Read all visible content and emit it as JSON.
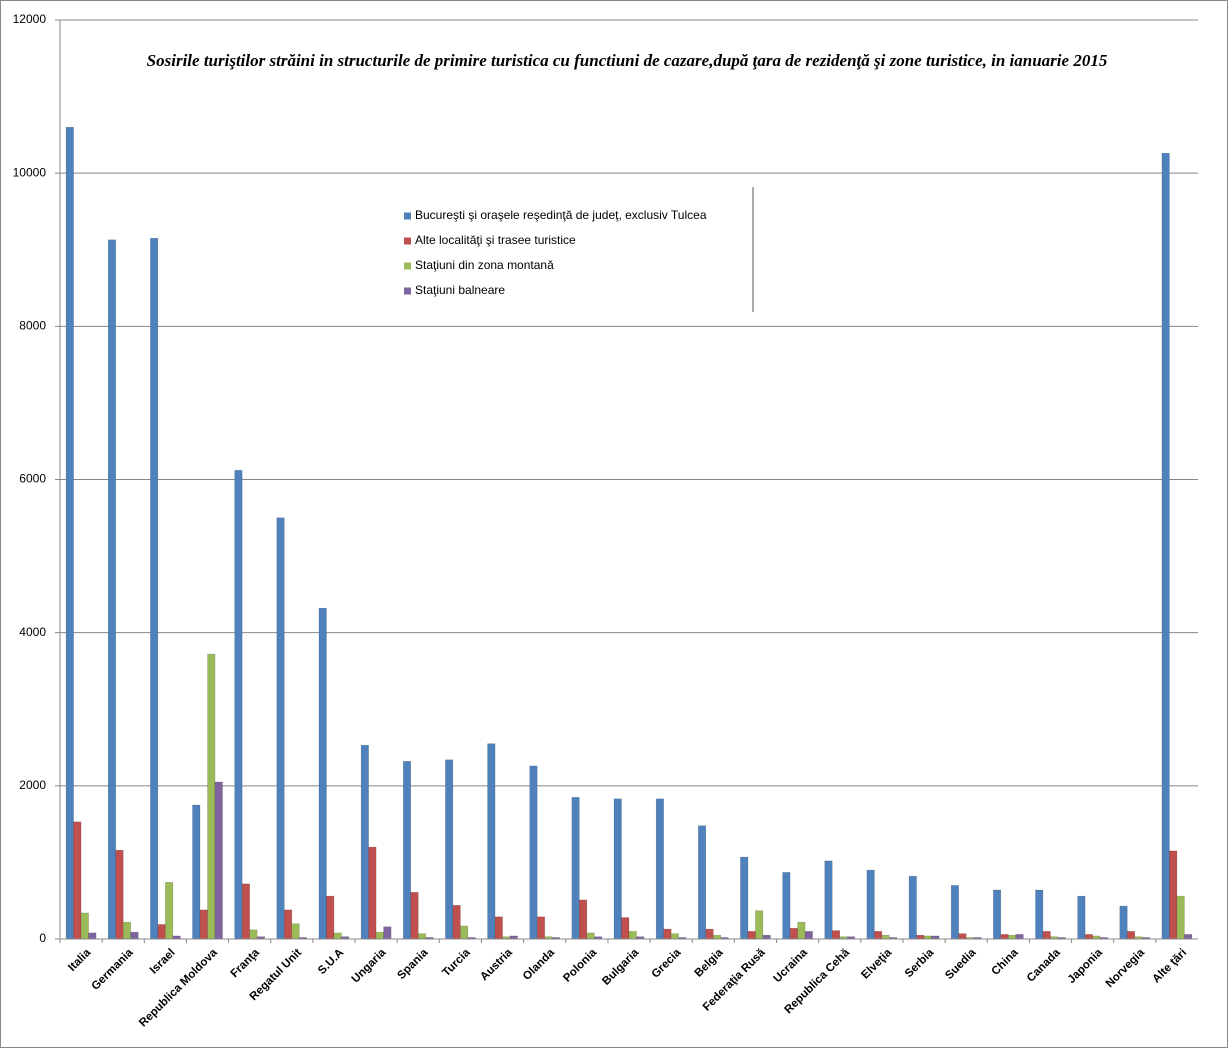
{
  "chart_data": {
    "type": "bar",
    "title": "Sosirile turiştilor străini in structurile de primire turistica cu functiuni de cazare,după ţara de rezidenţă şi zone turistice, in ianuarie 2015",
    "categories": [
      "Italia",
      "Germania",
      "Israel",
      "Republica Moldova",
      "Franţa",
      "Regatul Unit",
      "S.U.A",
      "Ungaria",
      "Spania",
      "Turcia",
      "Austria",
      "Olanda",
      "Polonia",
      "Bulgaria",
      "Grecia",
      "Belgia",
      "Federaţia Rusă",
      "Ucraina",
      "Republica Cehă",
      "Elveţia",
      "Serbia",
      "Suedia",
      "China",
      "Canada",
      "Japonia",
      "Norvegia",
      "Alte ţări"
    ],
    "series": [
      {
        "name": "Bucureşti şi oraşele reşedinţă de judeţ, exclusiv Tulcea",
        "color": "#4f81bd",
        "values": [
          10600,
          9130,
          9150,
          1750,
          6120,
          5500,
          4320,
          2530,
          2320,
          2340,
          2550,
          2260,
          1850,
          1830,
          1830,
          1480,
          1070,
          870,
          1020,
          900,
          820,
          700,
          640,
          640,
          560,
          430,
          10260
        ]
      },
      {
        "name": "Alte localităţi şi trasee turistice",
        "color": "#c0504d",
        "values": [
          1530,
          1160,
          190,
          380,
          720,
          380,
          560,
          1200,
          610,
          440,
          290,
          290,
          510,
          280,
          130,
          130,
          100,
          140,
          110,
          100,
          50,
          70,
          60,
          100,
          60,
          100,
          1150
        ]
      },
      {
        "name": "Staţiuni din zona montană",
        "color": "#9bbb59",
        "values": [
          340,
          220,
          740,
          3720,
          120,
          200,
          80,
          90,
          70,
          170,
          30,
          30,
          80,
          100,
          70,
          50,
          370,
          220,
          30,
          50,
          40,
          20,
          50,
          30,
          40,
          30,
          560
        ]
      },
      {
        "name": "Staţiuni balneare",
        "color": "#8064a2",
        "values": [
          80,
          90,
          40,
          2050,
          30,
          20,
          30,
          160,
          20,
          20,
          40,
          20,
          30,
          30,
          20,
          20,
          50,
          100,
          30,
          20,
          40,
          20,
          60,
          20,
          20,
          20,
          60
        ]
      }
    ],
    "ylim": [
      0,
      12000
    ],
    "yticks": [
      0,
      2000,
      4000,
      6000,
      8000,
      10000,
      12000
    ],
    "grid": true
  }
}
